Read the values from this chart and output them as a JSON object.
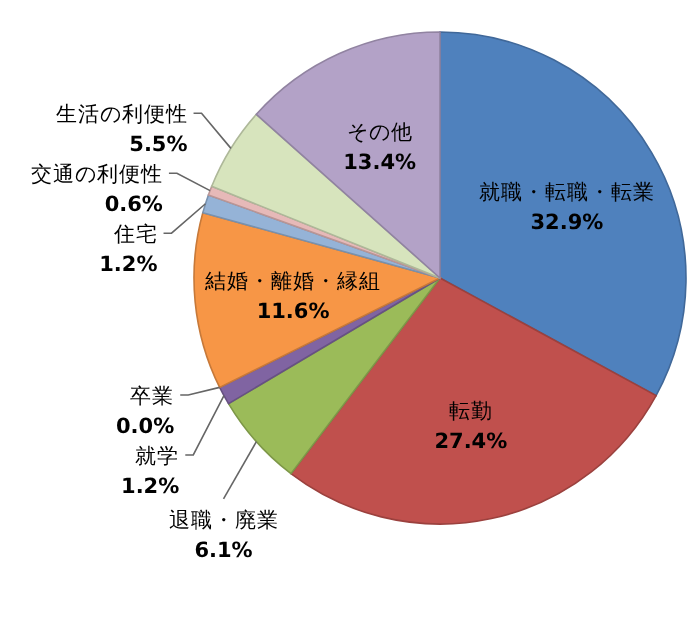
{
  "chart_data": {
    "type": "pie",
    "categories": [
      "就職・転職・転業",
      "転勤",
      "退職・廃業",
      "就学",
      "卒業",
      "結婚・離婚・縁組",
      "住宅",
      "交通の利便性",
      "生活の利便性",
      "その他"
    ],
    "values": [
      32.9,
      27.4,
      6.1,
      1.2,
      0.0,
      11.6,
      1.2,
      0.6,
      5.5,
      13.4
    ],
    "colors": [
      "#4f81bd",
      "#c0504d",
      "#9bbb59",
      "#8064a2",
      "#4bacc6",
      "#f79646",
      "#95b3d7",
      "#e6b9b8",
      "#d7e4bd",
      "#b3a2c7"
    ],
    "value_labels": [
      "32.9%",
      "27.4%",
      "6.1%",
      "1.2%",
      "0.0%",
      "11.6%",
      "1.2%",
      "0.6%",
      "5.5%",
      "13.4%"
    ]
  }
}
